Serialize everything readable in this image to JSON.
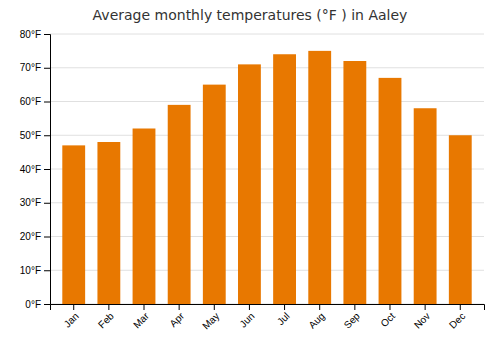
{
  "chart_data": {
    "type": "bar",
    "title": "Average monthly temperatures (°F ) in Aaley",
    "categories": [
      "Jan",
      "Feb",
      "Mar",
      "Apr",
      "May",
      "Jun",
      "Jul",
      "Aug",
      "Sep",
      "Oct",
      "Nov",
      "Dec"
    ],
    "values": [
      47,
      48,
      52,
      59,
      65,
      71,
      74,
      75,
      72,
      67,
      58,
      50
    ],
    "color": "#E87800",
    "ylim": [
      0,
      80
    ],
    "yticks": [
      {
        "value": 0,
        "label": "0°F"
      },
      {
        "value": 10,
        "label": "10°F"
      },
      {
        "value": 20,
        "label": "20°F"
      },
      {
        "value": 30,
        "label": "30°F"
      },
      {
        "value": 40,
        "label": "40°F"
      },
      {
        "value": 50,
        "label": "50°F"
      },
      {
        "value": 60,
        "label": "60°F"
      },
      {
        "value": 70,
        "label": "70°F"
      },
      {
        "value": 80,
        "label": "80°F"
      }
    ],
    "grid": true
  }
}
